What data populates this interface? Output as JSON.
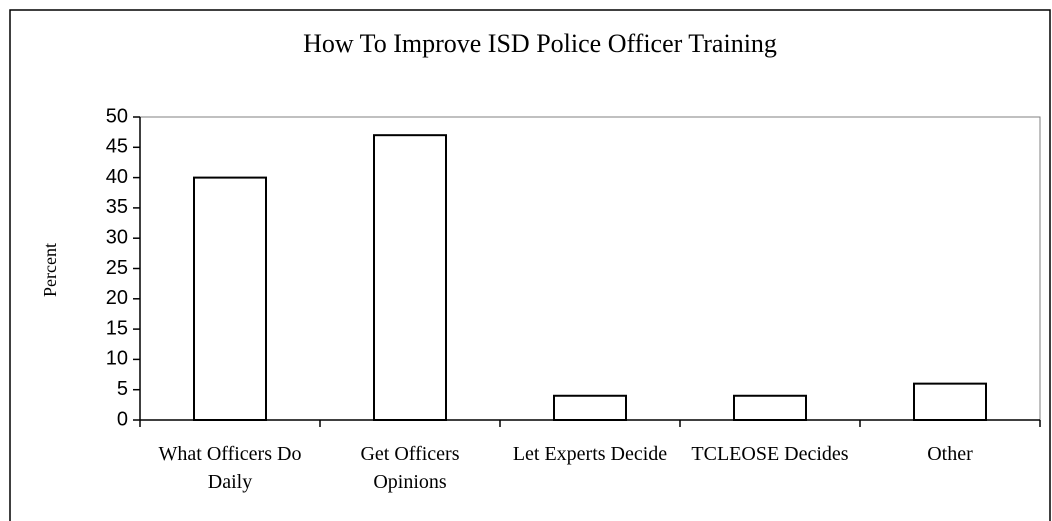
{
  "chart_data": {
    "type": "bar",
    "title": "How To Improve ISD Police Officer Training",
    "y_label": "Percent",
    "categories": [
      "What Officers Do Daily",
      "Get Officers Opinions",
      "Let Experts Decide",
      "TCLEOSE Decides",
      "Other"
    ],
    "values": [
      40,
      47,
      4,
      4,
      6
    ],
    "color": "#ffffff",
    "ylim": [
      0,
      50
    ],
    "yticks": [
      0,
      5,
      10,
      15,
      20,
      25,
      30,
      35,
      40,
      45,
      50
    ],
    "grid": false
  }
}
